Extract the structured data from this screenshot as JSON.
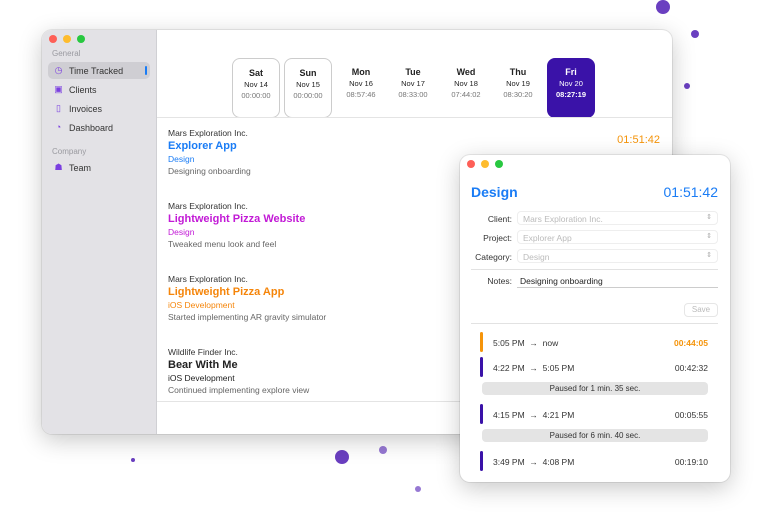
{
  "colors": {
    "accent": "#1a7cf5",
    "selected_day": "#3a12a8",
    "running": "#f5940a",
    "segment": "#3a12a8",
    "dots": "#6a3fc0"
  },
  "sidebar": {
    "sections": [
      {
        "label": "General",
        "items": [
          {
            "label": "Time Tracked",
            "icon": "timer-icon",
            "active": true
          },
          {
            "label": "Clients",
            "icon": "briefcase-icon"
          },
          {
            "label": "Invoices",
            "icon": "document-icon"
          },
          {
            "label": "Dashboard",
            "icon": "gauge-icon"
          }
        ]
      },
      {
        "label": "Company",
        "items": [
          {
            "label": "Team",
            "icon": "team-icon"
          }
        ]
      }
    ]
  },
  "days": [
    {
      "name": "Sat",
      "date": "Nov 14",
      "time": "00:00:00"
    },
    {
      "name": "Sun",
      "date": "Nov 15",
      "time": "00:00:00"
    },
    {
      "name": "Mon",
      "date": "Nov 16",
      "time": "08:57:46"
    },
    {
      "name": "Tue",
      "date": "Nov 17",
      "time": "08:33:00"
    },
    {
      "name": "Wed",
      "date": "Nov 18",
      "time": "07:44:02"
    },
    {
      "name": "Thu",
      "date": "Nov 19",
      "time": "08:30:20"
    },
    {
      "name": "Fri",
      "date": "Nov 20",
      "time": "08:27:19"
    }
  ],
  "entries": [
    {
      "client": "Mars Exploration Inc.",
      "project": "Explorer App",
      "category": "Design",
      "notes": "Designing onboarding",
      "color": "#1a7cf5",
      "duration": "01:51:42"
    },
    {
      "client": "Mars Exploration Inc.",
      "project": "Lightweight Pizza Website",
      "category": "Design",
      "notes": "Tweaked menu look and feel",
      "color": "#c21ad6"
    },
    {
      "client": "Mars Exploration Inc.",
      "project": "Lightweight Pizza App",
      "category": "iOS Development",
      "notes": "Started implementing AR gravity simulator",
      "color": "#f5850a"
    },
    {
      "client": "Wildlife Finder Inc.",
      "project": "Bear With Me",
      "category": "iOS Development",
      "notes": "Continued implementing explore view",
      "color": "#222222"
    }
  ],
  "detail": {
    "title": "Design",
    "timer": "01:51:42",
    "client_label": "Client:",
    "client": "Mars Exploration Inc.",
    "project_label": "Project:",
    "project": "Explorer App",
    "category_label": "Category:",
    "category": "Design",
    "notes_label": "Notes:",
    "notes": "Designing onboarding",
    "save": "Save",
    "segments": [
      {
        "start": "5:05 PM",
        "end": "now",
        "duration": "00:44:05",
        "running": true
      },
      {
        "start": "4:22 PM",
        "end": "5:05 PM",
        "duration": "00:42:32"
      },
      {
        "pause": "Paused for 1 min. 35 sec."
      },
      {
        "start": "4:15 PM",
        "end": "4:21 PM",
        "duration": "00:05:55"
      },
      {
        "pause": "Paused for 6 min. 40 sec."
      },
      {
        "start": "3:49 PM",
        "end": "4:08 PM",
        "duration": "00:19:10"
      }
    ],
    "arrow": "→"
  }
}
